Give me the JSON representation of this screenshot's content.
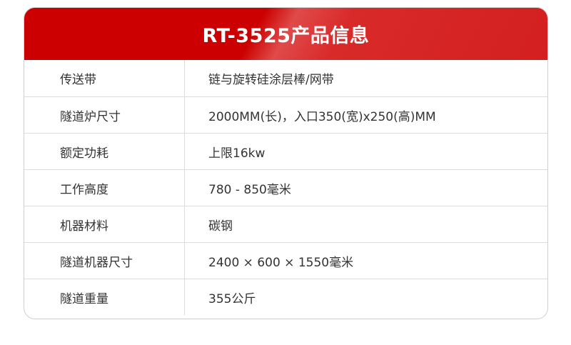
{
  "title": "RT-3525产品信息",
  "colors": {
    "header": "#cc0000"
  },
  "rows": [
    {
      "label": "传送带",
      "value": "链与旋转硅涂层棒/网带"
    },
    {
      "label": "隧道炉尺寸",
      "value": "2000MM(长)，入口350(宽)x250(高)MM"
    },
    {
      "label": "额定功耗",
      "value": "上限16kw"
    },
    {
      "label": "工作高度",
      "value": "780 - 850毫米"
    },
    {
      "label": "机器材料",
      "value": "碳钢"
    },
    {
      "label": "隧道机器尺寸",
      "value": "2400 × 600 × 1550毫米"
    },
    {
      "label": "隧道重量",
      "value": "355公斤"
    }
  ]
}
